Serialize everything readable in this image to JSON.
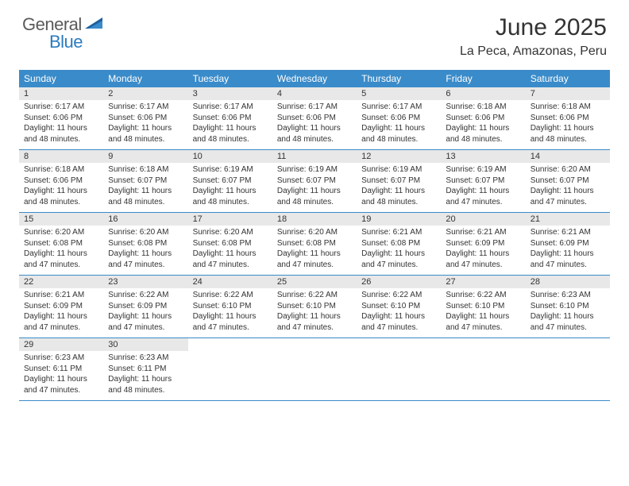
{
  "brand": {
    "part1": "General",
    "part2": "Blue"
  },
  "title": "June 2025",
  "location": "La Peca, Amazonas, Peru",
  "colors": {
    "header_bg": "#3a8bc9",
    "header_text": "#ffffff",
    "daynum_bg": "#e8e8e8",
    "border": "#3a8bc9",
    "text": "#333333",
    "brand_gray": "#5a5a5a",
    "brand_blue": "#2b7bbf",
    "page_bg": "#ffffff"
  },
  "typography": {
    "title_fontsize": 30,
    "location_fontsize": 16,
    "weekday_fontsize": 12,
    "daynum_fontsize": 11,
    "body_fontsize": 10
  },
  "weekdays": [
    "Sunday",
    "Monday",
    "Tuesday",
    "Wednesday",
    "Thursday",
    "Friday",
    "Saturday"
  ],
  "weeks": [
    [
      {
        "n": "1",
        "sunrise": "6:17 AM",
        "sunset": "6:06 PM",
        "daylight": "11 hours and 48 minutes."
      },
      {
        "n": "2",
        "sunrise": "6:17 AM",
        "sunset": "6:06 PM",
        "daylight": "11 hours and 48 minutes."
      },
      {
        "n": "3",
        "sunrise": "6:17 AM",
        "sunset": "6:06 PM",
        "daylight": "11 hours and 48 minutes."
      },
      {
        "n": "4",
        "sunrise": "6:17 AM",
        "sunset": "6:06 PM",
        "daylight": "11 hours and 48 minutes."
      },
      {
        "n": "5",
        "sunrise": "6:17 AM",
        "sunset": "6:06 PM",
        "daylight": "11 hours and 48 minutes."
      },
      {
        "n": "6",
        "sunrise": "6:18 AM",
        "sunset": "6:06 PM",
        "daylight": "11 hours and 48 minutes."
      },
      {
        "n": "7",
        "sunrise": "6:18 AM",
        "sunset": "6:06 PM",
        "daylight": "11 hours and 48 minutes."
      }
    ],
    [
      {
        "n": "8",
        "sunrise": "6:18 AM",
        "sunset": "6:06 PM",
        "daylight": "11 hours and 48 minutes."
      },
      {
        "n": "9",
        "sunrise": "6:18 AM",
        "sunset": "6:07 PM",
        "daylight": "11 hours and 48 minutes."
      },
      {
        "n": "10",
        "sunrise": "6:19 AM",
        "sunset": "6:07 PM",
        "daylight": "11 hours and 48 minutes."
      },
      {
        "n": "11",
        "sunrise": "6:19 AM",
        "sunset": "6:07 PM",
        "daylight": "11 hours and 48 minutes."
      },
      {
        "n": "12",
        "sunrise": "6:19 AM",
        "sunset": "6:07 PM",
        "daylight": "11 hours and 48 minutes."
      },
      {
        "n": "13",
        "sunrise": "6:19 AM",
        "sunset": "6:07 PM",
        "daylight": "11 hours and 47 minutes."
      },
      {
        "n": "14",
        "sunrise": "6:20 AM",
        "sunset": "6:07 PM",
        "daylight": "11 hours and 47 minutes."
      }
    ],
    [
      {
        "n": "15",
        "sunrise": "6:20 AM",
        "sunset": "6:08 PM",
        "daylight": "11 hours and 47 minutes."
      },
      {
        "n": "16",
        "sunrise": "6:20 AM",
        "sunset": "6:08 PM",
        "daylight": "11 hours and 47 minutes."
      },
      {
        "n": "17",
        "sunrise": "6:20 AM",
        "sunset": "6:08 PM",
        "daylight": "11 hours and 47 minutes."
      },
      {
        "n": "18",
        "sunrise": "6:20 AM",
        "sunset": "6:08 PM",
        "daylight": "11 hours and 47 minutes."
      },
      {
        "n": "19",
        "sunrise": "6:21 AM",
        "sunset": "6:08 PM",
        "daylight": "11 hours and 47 minutes."
      },
      {
        "n": "20",
        "sunrise": "6:21 AM",
        "sunset": "6:09 PM",
        "daylight": "11 hours and 47 minutes."
      },
      {
        "n": "21",
        "sunrise": "6:21 AM",
        "sunset": "6:09 PM",
        "daylight": "11 hours and 47 minutes."
      }
    ],
    [
      {
        "n": "22",
        "sunrise": "6:21 AM",
        "sunset": "6:09 PM",
        "daylight": "11 hours and 47 minutes."
      },
      {
        "n": "23",
        "sunrise": "6:22 AM",
        "sunset": "6:09 PM",
        "daylight": "11 hours and 47 minutes."
      },
      {
        "n": "24",
        "sunrise": "6:22 AM",
        "sunset": "6:10 PM",
        "daylight": "11 hours and 47 minutes."
      },
      {
        "n": "25",
        "sunrise": "6:22 AM",
        "sunset": "6:10 PM",
        "daylight": "11 hours and 47 minutes."
      },
      {
        "n": "26",
        "sunrise": "6:22 AM",
        "sunset": "6:10 PM",
        "daylight": "11 hours and 47 minutes."
      },
      {
        "n": "27",
        "sunrise": "6:22 AM",
        "sunset": "6:10 PM",
        "daylight": "11 hours and 47 minutes."
      },
      {
        "n": "28",
        "sunrise": "6:23 AM",
        "sunset": "6:10 PM",
        "daylight": "11 hours and 47 minutes."
      }
    ],
    [
      {
        "n": "29",
        "sunrise": "6:23 AM",
        "sunset": "6:11 PM",
        "daylight": "11 hours and 47 minutes."
      },
      {
        "n": "30",
        "sunrise": "6:23 AM",
        "sunset": "6:11 PM",
        "daylight": "11 hours and 48 minutes."
      },
      null,
      null,
      null,
      null,
      null
    ]
  ],
  "labels": {
    "sunrise": "Sunrise:",
    "sunset": "Sunset:",
    "daylight": "Daylight:"
  }
}
